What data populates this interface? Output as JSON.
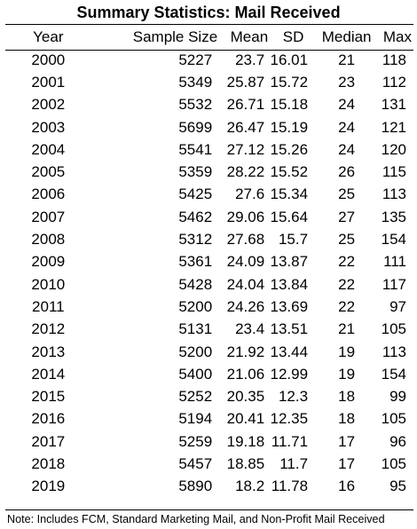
{
  "title": "Summary Statistics: Mail Received",
  "columns": [
    "Year",
    "Sample Size",
    "Mean",
    "SD",
    "Median",
    "Max"
  ],
  "rows": [
    [
      "2000",
      "5227",
      "23.7",
      "16.01",
      "21",
      "118"
    ],
    [
      "2001",
      "5349",
      "25.87",
      "15.72",
      "23",
      "112"
    ],
    [
      "2002",
      "5532",
      "26.71",
      "15.18",
      "24",
      "131"
    ],
    [
      "2003",
      "5699",
      "26.47",
      "15.19",
      "24",
      "121"
    ],
    [
      "2004",
      "5541",
      "27.12",
      "15.26",
      "24",
      "120"
    ],
    [
      "2005",
      "5359",
      "28.22",
      "15.52",
      "26",
      "115"
    ],
    [
      "2006",
      "5425",
      "27.6",
      "15.34",
      "25",
      "113"
    ],
    [
      "2007",
      "5462",
      "29.06",
      "15.64",
      "27",
      "135"
    ],
    [
      "2008",
      "5312",
      "27.68",
      "15.7",
      "25",
      "154"
    ],
    [
      "2009",
      "5361",
      "24.09",
      "13.87",
      "22",
      "111"
    ],
    [
      "2010",
      "5428",
      "24.04",
      "13.84",
      "22",
      "117"
    ],
    [
      "2011",
      "5200",
      "24.26",
      "13.69",
      "22",
      "97"
    ],
    [
      "2012",
      "5131",
      "23.4",
      "13.51",
      "21",
      "105"
    ],
    [
      "2013",
      "5200",
      "21.92",
      "13.44",
      "19",
      "113"
    ],
    [
      "2014",
      "5400",
      "21.06",
      "12.99",
      "19",
      "154"
    ],
    [
      "2015",
      "5252",
      "20.35",
      "12.3",
      "18",
      "99"
    ],
    [
      "2016",
      "5194",
      "20.41",
      "12.35",
      "18",
      "105"
    ],
    [
      "2017",
      "5259",
      "19.18",
      "11.71",
      "17",
      "96"
    ],
    [
      "2018",
      "5457",
      "18.85",
      "11.7",
      "17",
      "105"
    ],
    [
      "2019",
      "5890",
      "18.2",
      "11.78",
      "16",
      "95"
    ]
  ],
  "note": "Note: Includes FCM, Standard Marketing Mail, and Non-Profit Mail Received"
}
